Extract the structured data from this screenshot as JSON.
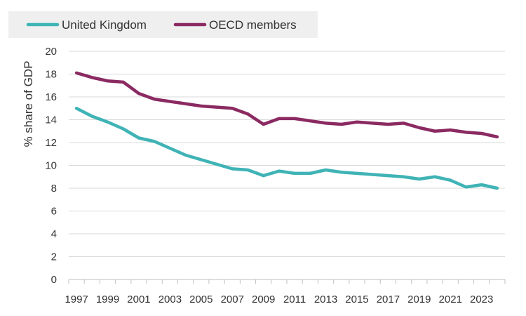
{
  "chart_data": {
    "type": "line",
    "title": "",
    "xlabel": "",
    "ylabel": "% share of GDP",
    "ylim": [
      0,
      20
    ],
    "yticks": [
      "0",
      "2",
      "4",
      "6",
      "8",
      "10",
      "12",
      "14",
      "16",
      "18",
      "20"
    ],
    "grid": true,
    "legend": "top-left",
    "x": [
      1997,
      1998,
      1999,
      2000,
      2001,
      2002,
      2003,
      2004,
      2005,
      2006,
      2007,
      2008,
      2009,
      2010,
      2011,
      2012,
      2013,
      2014,
      2015,
      2016,
      2017,
      2018,
      2019,
      2020,
      2021,
      2022,
      2023,
      2024
    ],
    "xticks": [
      "1997",
      "1999",
      "2001",
      "2003",
      "2005",
      "2007",
      "2009",
      "2011",
      "2013",
      "2015",
      "2017",
      "2019",
      "2021",
      "2023"
    ],
    "series": [
      {
        "name": "United Kingdom",
        "color": "#3fb3b5",
        "values": [
          15.0,
          14.3,
          13.8,
          13.2,
          12.4,
          12.1,
          11.5,
          10.9,
          10.5,
          10.1,
          9.7,
          9.6,
          9.1,
          9.5,
          9.3,
          9.3,
          9.6,
          9.4,
          9.3,
          9.2,
          9.1,
          9.0,
          8.8,
          9.0,
          8.7,
          8.1,
          8.3,
          8.0
        ]
      },
      {
        "name": "OECD members",
        "color": "#8b2a62",
        "values": [
          18.1,
          17.7,
          17.4,
          17.3,
          16.3,
          15.8,
          15.6,
          15.4,
          15.2,
          15.1,
          15.0,
          14.5,
          13.6,
          14.1,
          14.1,
          13.9,
          13.7,
          13.6,
          13.8,
          13.7,
          13.6,
          13.7,
          13.3,
          13.0,
          13.1,
          12.9,
          12.8,
          12.5
        ]
      }
    ]
  }
}
